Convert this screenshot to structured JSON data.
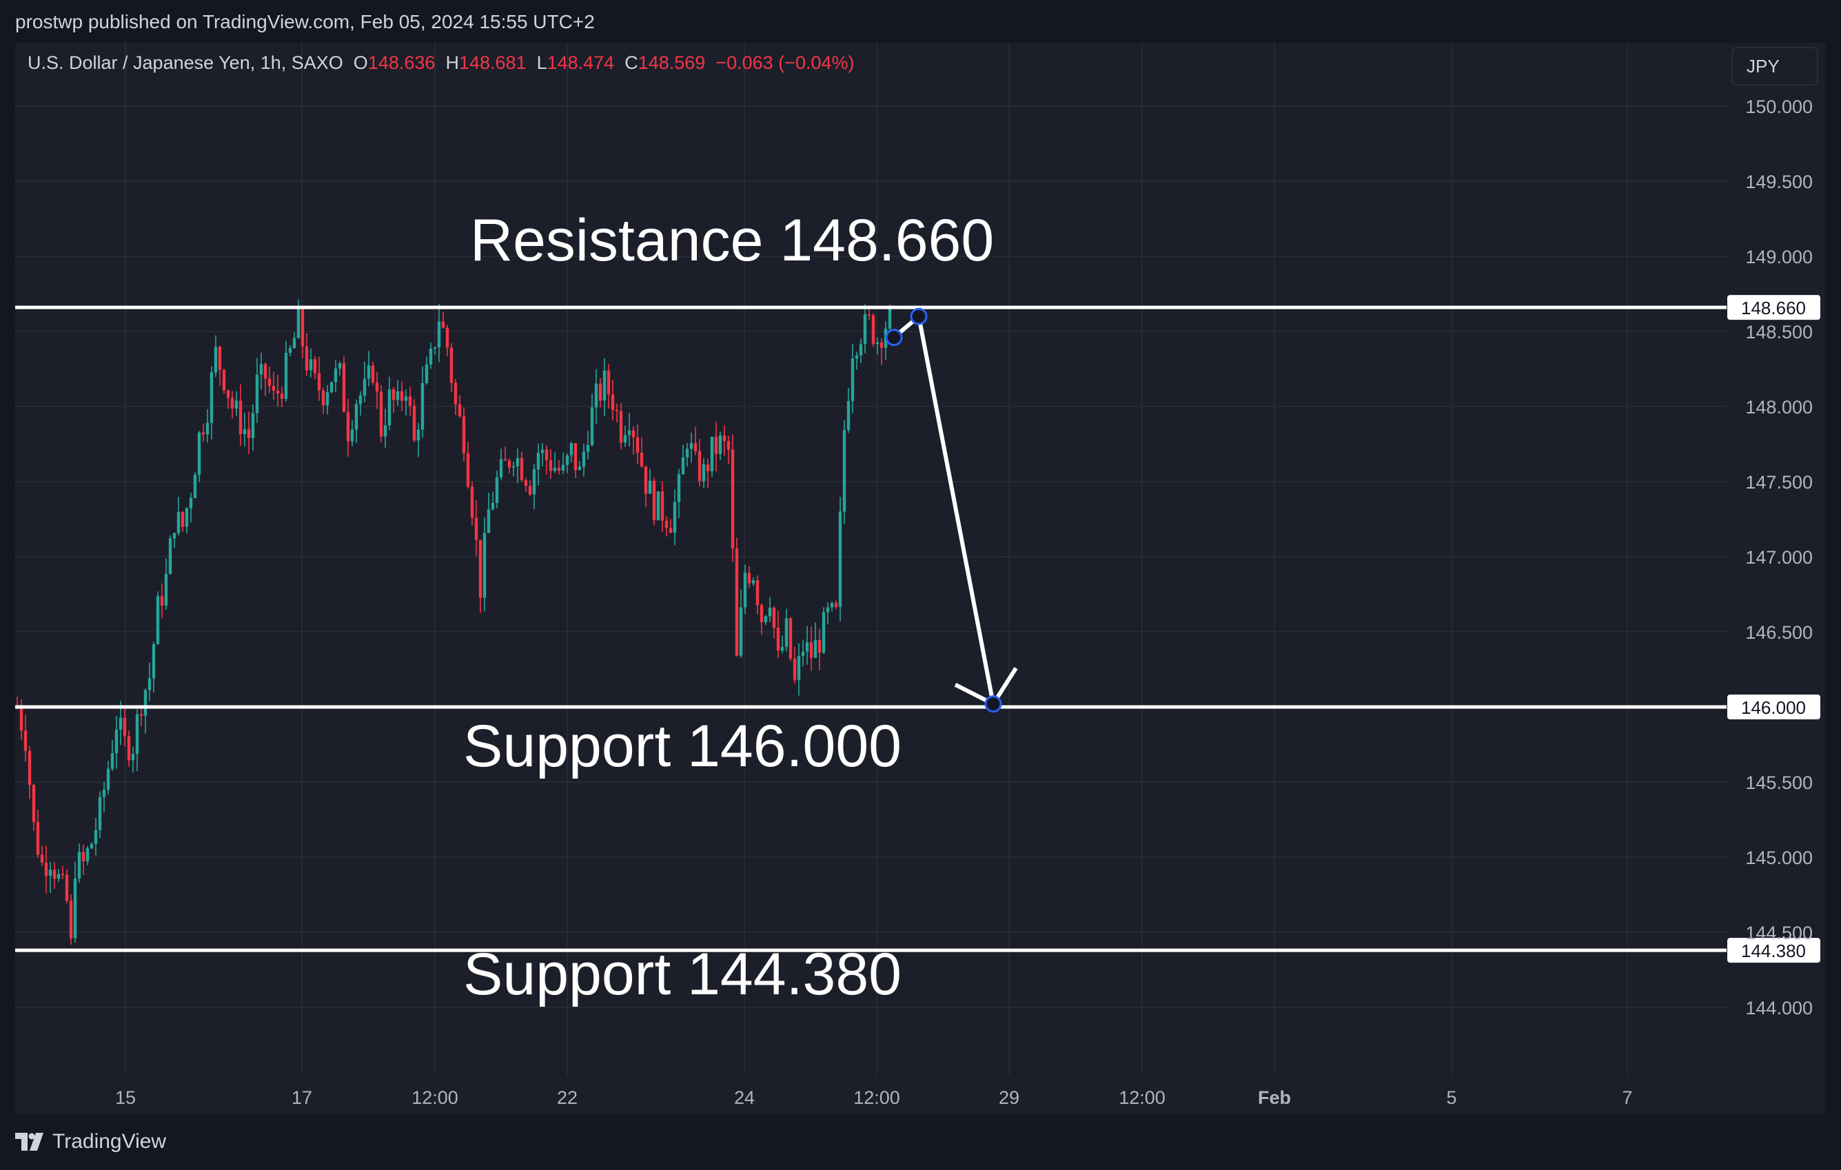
{
  "header": {
    "published_text": "prostwp published on TradingView.com, Feb 05, 2024 15:55 UTC+2"
  },
  "legend": {
    "symbol": "U.S. Dollar / Japanese Yen, 1h, SAXO",
    "o_label": "O",
    "o_value": "148.636",
    "h_label": "H",
    "h_value": "148.681",
    "l_label": "L",
    "l_value": "148.474",
    "c_label": "C",
    "c_value": "148.569",
    "change": "−0.063 (−0.04%)"
  },
  "currency_button": {
    "label": "JPY"
  },
  "footer": {
    "brand": "TradingView"
  },
  "colors": {
    "background": "#131722",
    "pane": "#1c1f2a",
    "up": "#26a69a",
    "down": "#f23645",
    "annotation": "#ffffff",
    "grid": "#2a2e39"
  },
  "chart_data": {
    "type": "candlestick",
    "symbol": "USDJPY",
    "timeframe": "1h",
    "y_axis": {
      "ticks": [
        "150.000",
        "149.500",
        "149.000",
        "148.500",
        "148.000",
        "147.500",
        "147.000",
        "146.500",
        "145.500",
        "145.000",
        "144.500",
        "144.000"
      ],
      "range": [
        143.55,
        150.4
      ]
    },
    "x_axis": {
      "ticks": [
        "15",
        "17",
        "12:00",
        "22",
        "24",
        "12:00",
        "29",
        "12:00",
        "Feb",
        "5",
        "7"
      ],
      "bold_ticks": [
        "Feb"
      ]
    },
    "price_close_path": [
      [
        0,
        146.0
      ],
      [
        2,
        145.8
      ],
      [
        4,
        145.2
      ],
      [
        6,
        144.95
      ],
      [
        8,
        145.0
      ],
      [
        10,
        144.85
      ],
      [
        12,
        144.7
      ],
      [
        13,
        144.4
      ],
      [
        14,
        144.95
      ],
      [
        16,
        144.95
      ],
      [
        18,
        145.1
      ],
      [
        20,
        145.3
      ],
      [
        22,
        145.6
      ],
      [
        24,
        145.9
      ],
      [
        26,
        145.75
      ],
      [
        28,
        145.75
      ],
      [
        30,
        146.05
      ],
      [
        32,
        146.2
      ],
      [
        34,
        146.65
      ],
      [
        36,
        146.85
      ],
      [
        38,
        147.25
      ],
      [
        40,
        147.2
      ],
      [
        42,
        147.45
      ],
      [
        44,
        147.8
      ],
      [
        46,
        148.0
      ],
      [
        48,
        148.35
      ],
      [
        50,
        148.2
      ],
      [
        52,
        148.0
      ],
      [
        54,
        147.9
      ],
      [
        56,
        147.8
      ],
      [
        58,
        148.15
      ],
      [
        60,
        148.2
      ],
      [
        62,
        148.05
      ],
      [
        64,
        148.15
      ],
      [
        66,
        148.35
      ],
      [
        68,
        148.55
      ],
      [
        70,
        148.3
      ],
      [
        72,
        148.15
      ],
      [
        74,
        148.1
      ],
      [
        76,
        148.2
      ],
      [
        78,
        148.2
      ],
      [
        80,
        147.85
      ],
      [
        82,
        148.05
      ],
      [
        84,
        148.1
      ],
      [
        86,
        148.25
      ],
      [
        88,
        147.85
      ],
      [
        90,
        148.05
      ],
      [
        92,
        148.0
      ],
      [
        94,
        148.15
      ],
      [
        96,
        147.75
      ],
      [
        98,
        148.1
      ],
      [
        100,
        148.3
      ],
      [
        102,
        148.6
      ],
      [
        104,
        148.4
      ],
      [
        106,
        148.0
      ],
      [
        108,
        147.8
      ],
      [
        110,
        147.35
      ],
      [
        112,
        146.8
      ],
      [
        114,
        147.3
      ],
      [
        116,
        147.5
      ],
      [
        118,
        147.6
      ],
      [
        120,
        147.7
      ],
      [
        122,
        147.6
      ],
      [
        124,
        147.5
      ],
      [
        126,
        147.7
      ],
      [
        128,
        147.65
      ],
      [
        130,
        147.6
      ],
      [
        132,
        147.55
      ],
      [
        134,
        147.7
      ],
      [
        136,
        147.55
      ],
      [
        138,
        147.85
      ],
      [
        140,
        148.05
      ],
      [
        142,
        148.15
      ],
      [
        144,
        148.05
      ],
      [
        146,
        147.85
      ],
      [
        148,
        147.95
      ],
      [
        150,
        147.75
      ],
      [
        152,
        147.5
      ],
      [
        154,
        147.35
      ],
      [
        156,
        147.3
      ],
      [
        158,
        147.25
      ],
      [
        160,
        147.45
      ],
      [
        162,
        147.8
      ],
      [
        164,
        147.6
      ],
      [
        166,
        147.55
      ],
      [
        168,
        147.7
      ],
      [
        170,
        147.75
      ],
      [
        172,
        147.7
      ],
      [
        174,
        146.3
      ],
      [
        176,
        146.9
      ],
      [
        178,
        146.9
      ],
      [
        180,
        146.6
      ],
      [
        182,
        146.75
      ],
      [
        184,
        146.3
      ],
      [
        186,
        146.5
      ],
      [
        188,
        146.15
      ],
      [
        190,
        146.4
      ],
      [
        192,
        146.35
      ],
      [
        194,
        146.45
      ],
      [
        196,
        146.6
      ],
      [
        198,
        146.6
      ],
      [
        200,
        147.85
      ],
      [
        202,
        148.4
      ],
      [
        204,
        148.5
      ],
      [
        206,
        148.55
      ],
      [
        208,
        148.45
      ],
      [
        210,
        148.55
      ],
      [
        211,
        148.569
      ]
    ],
    "total_bars": 212,
    "annotations": {
      "horizontal_lines": [
        {
          "price": 148.66,
          "label": "Resistance 148.660",
          "axis_label": "148.660"
        },
        {
          "price": 146.0,
          "label": "Support 146.000",
          "axis_label": "146.000"
        },
        {
          "price": 144.38,
          "label": "Support 144.380",
          "axis_label": "144.380"
        }
      ],
      "projection_path": [
        {
          "bar": 212.5,
          "price": 148.46
        },
        {
          "bar": 218.5,
          "price": 148.6
        },
        {
          "bar": 236.5,
          "price": 146.02
        }
      ]
    }
  }
}
